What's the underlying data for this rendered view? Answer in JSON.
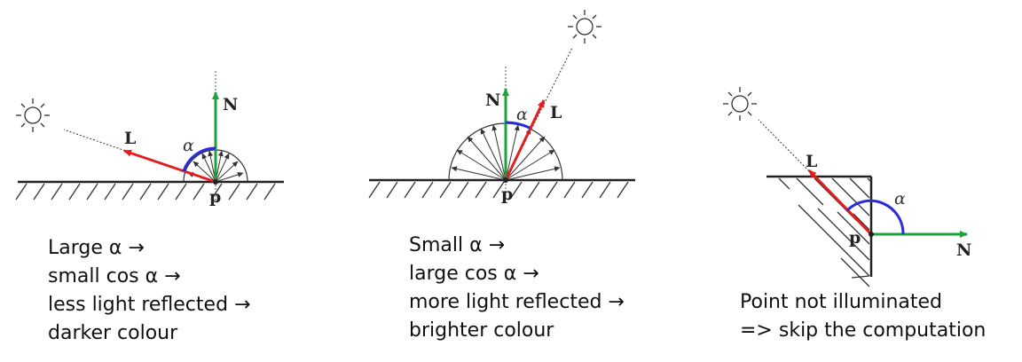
{
  "colors": {
    "light_vector": "#e31e1e",
    "normal_vector": "#1ea23a",
    "angle_arc": "#2b2bd9",
    "lines": "#333333",
    "text": "#111111"
  },
  "icons": {
    "light_source": "sun-icon"
  },
  "panels": [
    {
      "id": "large-angle",
      "labels": {
        "normal": "N",
        "light": "L",
        "point": "p",
        "angle": "α"
      },
      "caption": [
        "Large α →",
        "small cos α →",
        "less light reflected →",
        "darker colour"
      ]
    },
    {
      "id": "small-angle",
      "labels": {
        "normal": "N",
        "light": "L",
        "point": "p",
        "angle": "α"
      },
      "caption": [
        "Small α →",
        "large cos α →",
        "more light reflected →",
        "brighter colour"
      ]
    },
    {
      "id": "not-illuminated",
      "labels": {
        "normal": "N",
        "light": "L",
        "point": "p",
        "angle": "α"
      },
      "caption": [
        "Point not illuminated",
        "=> skip the computation"
      ]
    }
  ]
}
